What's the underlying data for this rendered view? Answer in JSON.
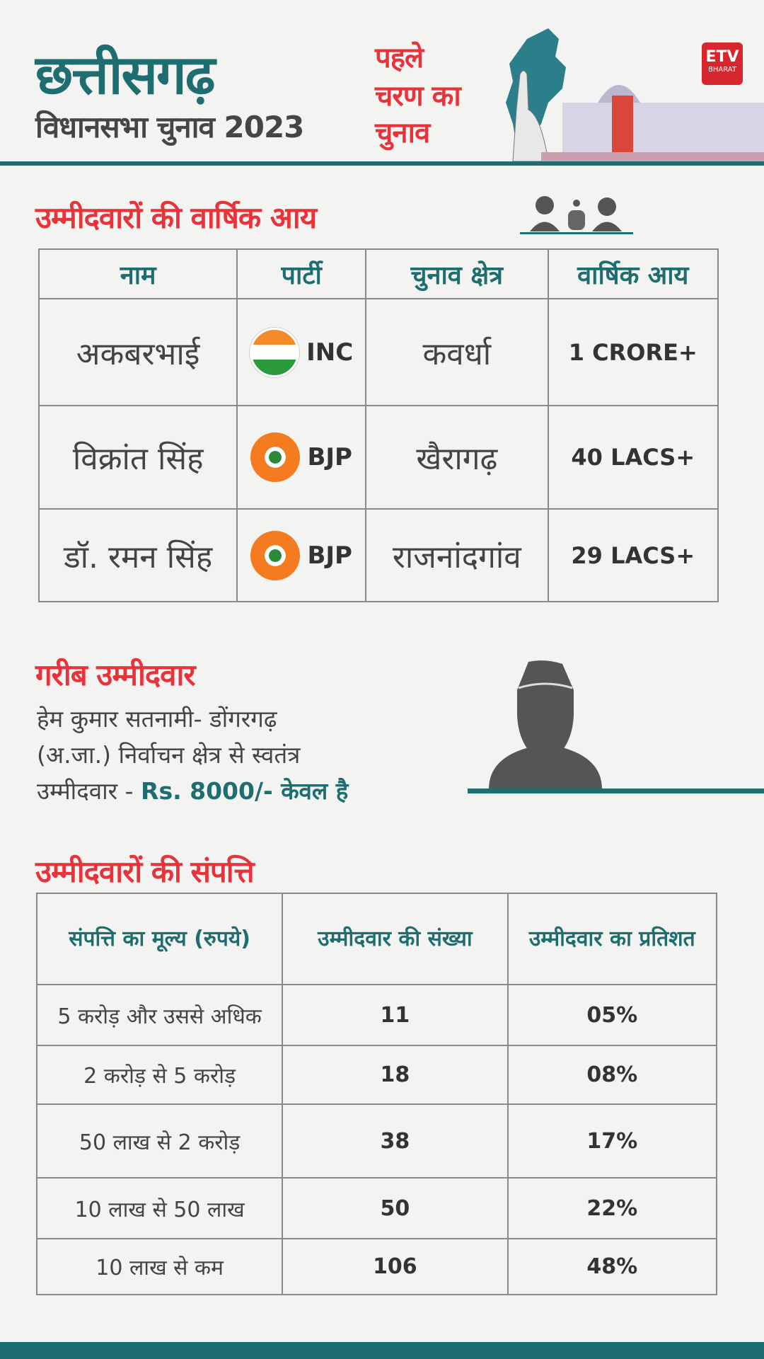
{
  "header": {
    "title": "छत्तीसगढ़",
    "subtitle": "विधानसभा चुनाव 2023",
    "phase_lines": [
      "पहले",
      "चरण का",
      "चुनाव"
    ],
    "logo_text": "ETV BHARAT"
  },
  "income": {
    "heading": "उम्मीदवारों की वार्षिक आय",
    "columns": [
      "नाम",
      "पार्टी",
      "चुनाव क्षेत्र",
      "वार्षिक आय"
    ],
    "rows": [
      {
        "name": "अकबरभाई",
        "party": "INC",
        "party_icon": "congress-hand-icon",
        "constituency": "कवर्धा",
        "income": "1 CRORE+"
      },
      {
        "name": "विक्रांत सिंह",
        "party": "BJP",
        "party_icon": "bjp-lotus-icon",
        "constituency": "खैरागढ़",
        "income": "40 LACS+"
      },
      {
        "name": "डॉ. रमन सिंह",
        "party": "BJP",
        "party_icon": "bjp-lotus-icon",
        "constituency": "राजनांदगांव",
        "income": "29 LACS+"
      }
    ]
  },
  "poor": {
    "heading": "गरीब उम्मीदवार",
    "line1": "हेम कुमार सतनामी- डोंगरगढ़",
    "line2": "(अ.जा.) निर्वाचन क्षेत्र से स्वतंत्र",
    "line3": "उम्मीदवार - ",
    "highlight": "Rs. 8000/- केवल है"
  },
  "assets": {
    "heading": "उम्मीदवारों की संपत्ति",
    "columns": [
      "संपत्ति का मूल्य (रुपये)",
      "उम्मीदवार की संख्या",
      "उम्मीदवार का प्रतिशत"
    ],
    "rows": [
      {
        "range": "5 करोड़ और उससे अधिक",
        "count": "11",
        "percent": "05%"
      },
      {
        "range": "2 करोड़ से 5 करोड़",
        "count": "18",
        "percent": "08%"
      },
      {
        "range": "50 लाख से 2 करोड़",
        "count": "38",
        "percent": "17%"
      },
      {
        "range": "10 लाख से 50 लाख",
        "count": "50",
        "percent": "22%"
      },
      {
        "range": "10 लाख से कम",
        "count": "106",
        "percent": "48%"
      }
    ]
  },
  "colors": {
    "teal": "#1d6d71",
    "red": "#e8333a",
    "text": "#444444",
    "bjp": "#f47b20"
  }
}
